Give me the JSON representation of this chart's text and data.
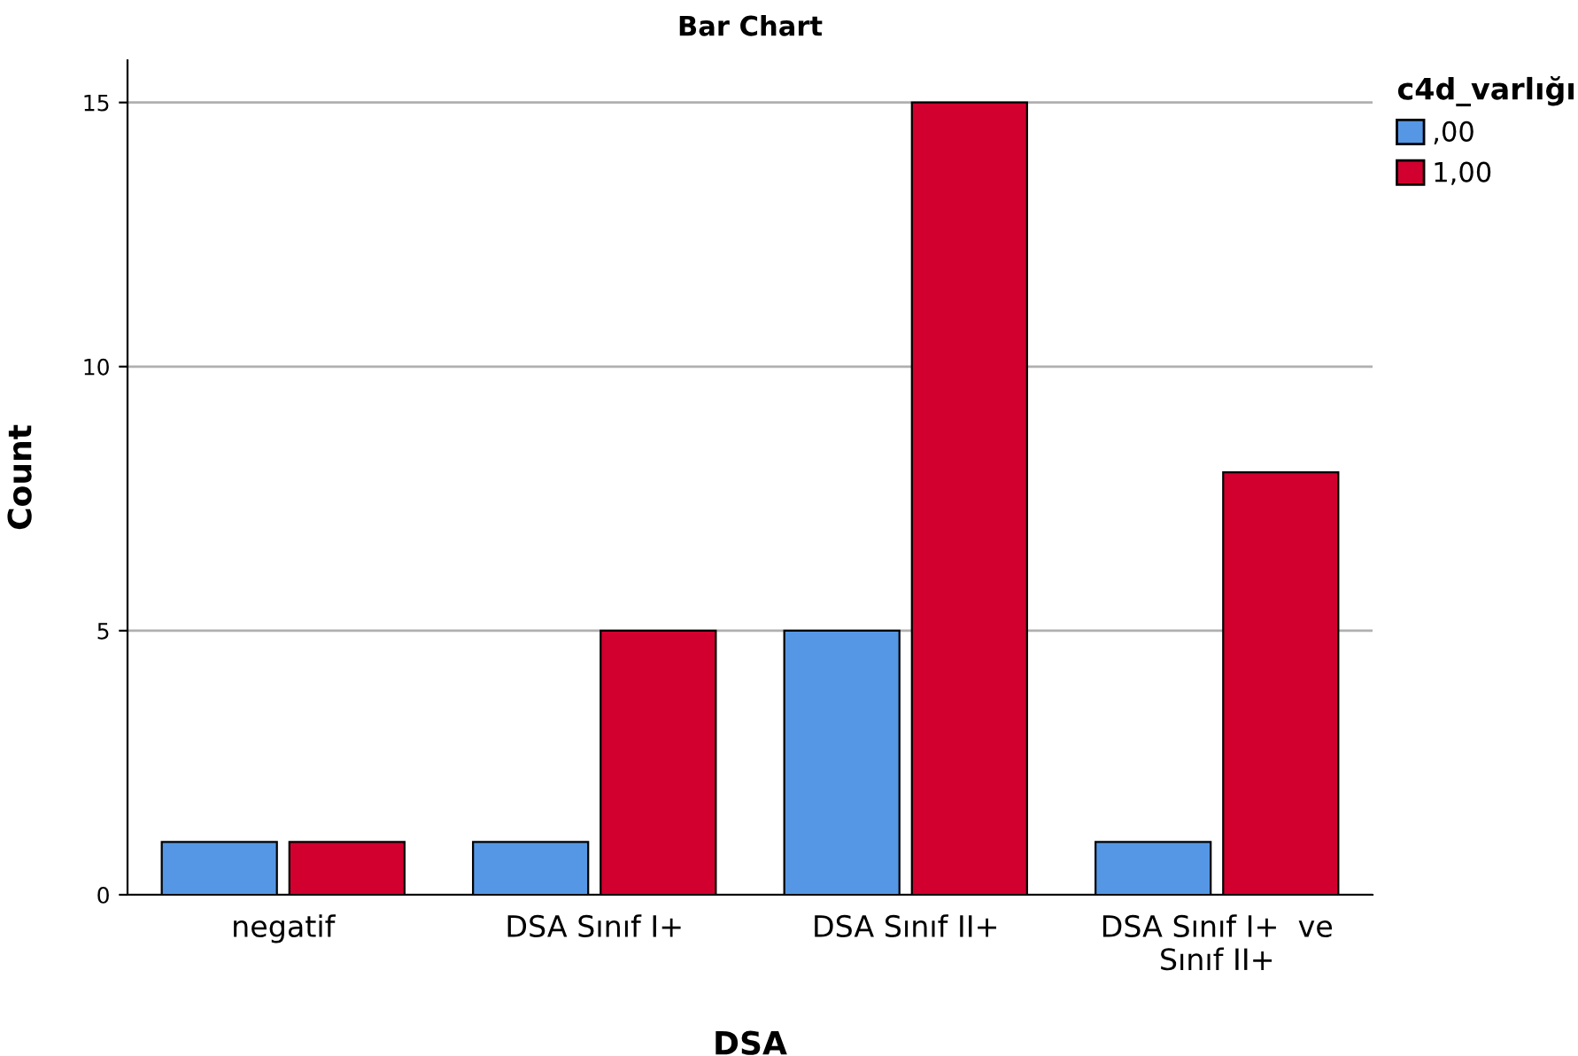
{
  "chart_data": {
    "type": "bar",
    "title": "Bar Chart",
    "xlabel": "DSA",
    "ylabel": "Count",
    "legend_title": "c4d_varlığı",
    "categories": [
      "negatif",
      "DSA Sınıf I+",
      "DSA Sınıf II+",
      "DSA Sınıf I+  ve\nSınıf II+"
    ],
    "series": [
      {
        "name": ",00",
        "color": "#5597e4",
        "values": [
          1,
          1,
          5,
          1
        ]
      },
      {
        "name": "1,00",
        "color": "#d2002f",
        "values": [
          1,
          5,
          15,
          8
        ]
      }
    ],
    "ylim": [
      0,
      15.8
    ],
    "yticks": [
      0,
      5,
      10,
      15
    ],
    "grid": "y",
    "legend": "top right"
  }
}
